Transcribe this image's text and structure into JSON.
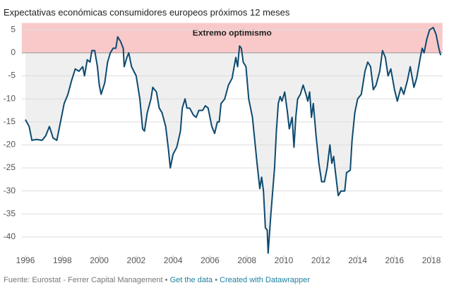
{
  "chart_data": {
    "type": "line",
    "title": "Expectativas económicas consumidores europeos próximos 12 meses",
    "color": "#0d4a70",
    "area_color": "#efefef",
    "grid": true,
    "band": {
      "from": 0,
      "to": 6.5,
      "label": "Extremo optimismo",
      "color": "#f9c9c9"
    },
    "xlim": [
      1995.8,
      2018.6
    ],
    "ylim": [
      -44,
      6.5
    ],
    "xticks": [
      1996,
      1998,
      2000,
      2002,
      2004,
      2006,
      2008,
      2010,
      2012,
      2014,
      2016,
      2018
    ],
    "yticks": [
      5,
      0,
      -5,
      -10,
      -15,
      -20,
      -25,
      -30,
      -35,
      -40
    ],
    "x": [
      1996.0,
      1996.2,
      1996.35,
      1996.6,
      1996.9,
      1997.1,
      1997.3,
      1997.5,
      1997.7,
      1997.9,
      1998.1,
      1998.3,
      1998.5,
      1998.7,
      1998.9,
      1999.1,
      1999.2,
      1999.35,
      1999.5,
      1999.6,
      1999.75,
      1999.9,
      2000.0,
      2000.1,
      2000.3,
      2000.45,
      2000.6,
      2000.75,
      2000.9,
      2001.0,
      2001.15,
      2001.3,
      2001.35,
      2001.5,
      2001.6,
      2001.75,
      2002.0,
      2002.2,
      2002.35,
      2002.45,
      2002.6,
      2002.8,
      2002.9,
      2003.1,
      2003.25,
      2003.4,
      2003.6,
      2003.75,
      2003.85,
      2004.0,
      2004.2,
      2004.4,
      2004.5,
      2004.65,
      2004.75,
      2004.9,
      2005.1,
      2005.25,
      2005.4,
      2005.6,
      2005.75,
      2005.9,
      2006.1,
      2006.25,
      2006.4,
      2006.5,
      2006.6,
      2006.8,
      2007.0,
      2007.2,
      2007.4,
      2007.5,
      2007.6,
      2007.7,
      2007.8,
      2007.95,
      2008.1,
      2008.3,
      2008.4,
      2008.55,
      2008.7,
      2008.8,
      2008.9,
      2009.0,
      2009.1,
      2009.15,
      2009.3,
      2009.5,
      2009.6,
      2009.7,
      2009.8,
      2009.9,
      2010.05,
      2010.2,
      2010.3,
      2010.45,
      2010.55,
      2010.65,
      2010.75,
      2010.9,
      2011.05,
      2011.2,
      2011.3,
      2011.4,
      2011.5,
      2011.6,
      2011.75,
      2011.9,
      2012.05,
      2012.2,
      2012.35,
      2012.5,
      2012.6,
      2012.7,
      2012.8,
      2012.95,
      2013.1,
      2013.3,
      2013.4,
      2013.6,
      2013.7,
      2013.85,
      2014.0,
      2014.2,
      2014.4,
      2014.55,
      2014.7,
      2014.85,
      2015.0,
      2015.2,
      2015.35,
      2015.5,
      2015.65,
      2015.8,
      2016.0,
      2016.15,
      2016.35,
      2016.5,
      2016.7,
      2016.85,
      2017.05,
      2017.2,
      2017.4,
      2017.5,
      2017.6,
      2017.75,
      2017.9,
      2018.1,
      2018.25,
      2018.4,
      2018.5
    ],
    "values": [
      -14.5,
      -16,
      -19,
      -18.8,
      -19,
      -18,
      -16,
      -18.5,
      -19,
      -15,
      -11,
      -9,
      -6,
      -3.5,
      -4,
      -3,
      -5,
      -1.5,
      -2,
      0.5,
      0.5,
      -3,
      -7,
      -9,
      -6.5,
      -2,
      0,
      1,
      1,
      3.5,
      2.5,
      1,
      -3,
      -1,
      0,
      -3,
      -5,
      -10,
      -16.5,
      -17,
      -13,
      -10,
      -7.5,
      -8.5,
      -12,
      -13,
      -16,
      -21,
      -25,
      -22,
      -20.5,
      -17,
      -12,
      -10,
      -12,
      -12,
      -13.5,
      -14,
      -12.5,
      -12.5,
      -11.5,
      -12,
      -16,
      -17.5,
      -15,
      -15,
      -11,
      -10,
      -7,
      -5.5,
      -1,
      -3,
      1.5,
      1,
      -2,
      -3,
      -10,
      -14,
      -18,
      -24,
      -29.5,
      -27,
      -30,
      -38,
      -38.5,
      -43.5,
      -35,
      -25,
      -17,
      -11,
      -9.5,
      -10.5,
      -8.5,
      -13,
      -16.5,
      -14,
      -20.5,
      -14,
      -10,
      -9,
      -7,
      -9,
      -10.5,
      -8.5,
      -14,
      -11,
      -18,
      -24,
      -28,
      -28,
      -25,
      -20,
      -24,
      -22.5,
      -26,
      -31,
      -30,
      -30,
      -26,
      -25.5,
      -19,
      -13,
      -10,
      -9,
      -4,
      -2,
      -3,
      -8,
      -7,
      -4,
      0.5,
      -1,
      -5,
      -3.5,
      -8,
      -10.5,
      -7.5,
      -9,
      -6,
      -3,
      -7.5,
      -5.5,
      -1,
      1,
      0,
      3,
      5,
      5.5,
      4,
      1,
      -0.5
    ],
    "source": "Fuente: Eurostat - Ferrer Capital Management",
    "separator": "•",
    "links": [
      "Get the data",
      "Created with Datawrapper"
    ]
  }
}
